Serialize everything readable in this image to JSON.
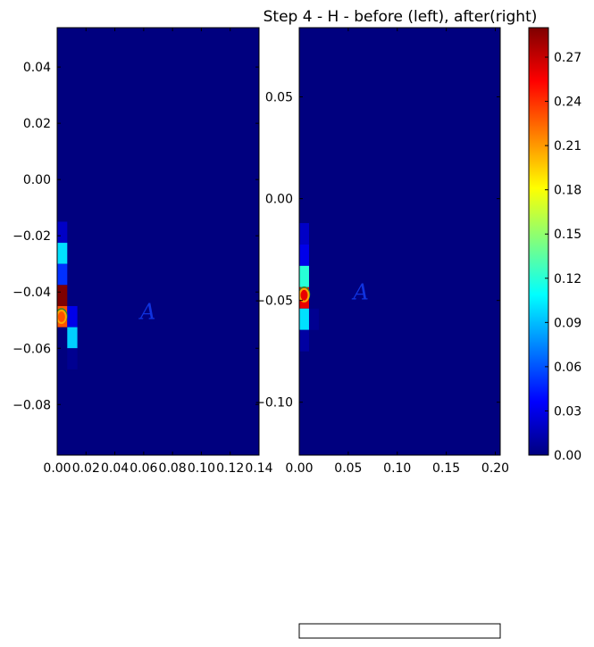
{
  "title": "Step 4 - H - before (left), after(right)",
  "colormap": {
    "name": "jet",
    "colors": [
      "#00007f",
      "#0000ff",
      "#007fff",
      "#00ffff",
      "#7fff7f",
      "#ffff00",
      "#ff7f00",
      "#ff0000",
      "#7f0000"
    ]
  },
  "chart_data": [
    {
      "type": "heatmap",
      "name": "before",
      "xlim": [
        0.0,
        0.14
      ],
      "ylim": [
        -0.098,
        0.054
      ],
      "xticks": [
        "0.00",
        "0.02",
        "0.04",
        "0.06",
        "0.08",
        "0.10",
        "0.12",
        "0.14"
      ],
      "yticks": [
        "0.04",
        "0.02",
        "0.00",
        "−0.02",
        "−0.04",
        "−0.06",
        "−0.08"
      ],
      "ytick_values": [
        0.04,
        0.02,
        0.0,
        -0.02,
        -0.04,
        -0.06,
        -0.08
      ],
      "cell": {
        "dx": 0.007,
        "dy": 0.0075
      },
      "background": 0.0,
      "cells": [
        {
          "x": 0.0,
          "y": -0.0225,
          "v": 0.02
        },
        {
          "x": 0.0,
          "y": -0.03,
          "v": 0.1
        },
        {
          "x": 0.0,
          "y": -0.0375,
          "v": 0.05
        },
        {
          "x": 0.0,
          "y": -0.045,
          "v": 0.29
        },
        {
          "x": 0.0,
          "y": -0.0525,
          "v": 0.23
        },
        {
          "x": 0.007,
          "y": -0.0525,
          "v": 0.03
        },
        {
          "x": 0.007,
          "y": -0.06,
          "v": 0.095
        },
        {
          "x": 0.007,
          "y": -0.0675,
          "v": 0.005
        }
      ],
      "annotations": [
        {
          "text": "A",
          "x": 0.063,
          "y": -0.047
        }
      ],
      "markers": [
        {
          "x": 0.003,
          "y": -0.0485
        }
      ]
    },
    {
      "type": "heatmap",
      "name": "after",
      "xlim": [
        0.0,
        0.205
      ],
      "ylim": [
        -0.126,
        0.084
      ],
      "xticks": [
        "0.00",
        "0.05",
        "0.10",
        "0.15",
        "0.20"
      ],
      "xtick_values": [
        0.0,
        0.05,
        0.1,
        0.15,
        0.2
      ],
      "yticks": [
        "0.05",
        "0.00",
        "−0.05",
        "−0.10"
      ],
      "ytick_values": [
        0.05,
        0.0,
        -0.05,
        -0.1
      ],
      "cell": {
        "dx": 0.01,
        "dy": 0.0105
      },
      "background": 0.0,
      "cells": [
        {
          "x": 0.0,
          "y": -0.0225,
          "v": 0.02
        },
        {
          "x": 0.0,
          "y": -0.033,
          "v": 0.03
        },
        {
          "x": 0.0,
          "y": -0.0435,
          "v": 0.12
        },
        {
          "x": 0.0,
          "y": -0.054,
          "v": 0.26
        },
        {
          "x": 0.0,
          "y": -0.0645,
          "v": 0.1
        },
        {
          "x": 0.0,
          "y": -0.075,
          "v": 0.01
        },
        {
          "x": 0.01,
          "y": -0.0645,
          "v": 0.005
        }
      ],
      "annotations": [
        {
          "text": "A",
          "x": 0.063,
          "y": -0.046
        }
      ],
      "markers": [
        {
          "x": 0.005,
          "y": -0.047
        }
      ]
    },
    {
      "type": "colorbar",
      "name": "colorbar",
      "range": [
        0.0,
        0.29
      ],
      "ticks": [
        "0.00",
        "0.03",
        "0.06",
        "0.09",
        "0.12",
        "0.15",
        "0.18",
        "0.21",
        "0.24",
        "0.27"
      ],
      "tick_values": [
        0.0,
        0.03,
        0.06,
        0.09,
        0.12,
        0.15,
        0.18,
        0.21,
        0.24,
        0.27
      ]
    }
  ]
}
